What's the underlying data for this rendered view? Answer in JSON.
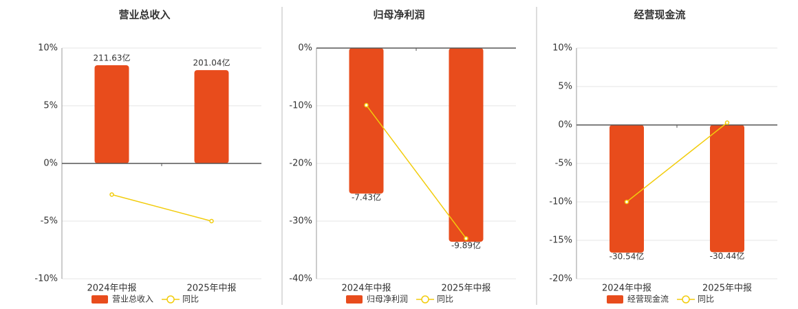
{
  "chart_data": [
    {
      "type": "bar",
      "title": "营业总收入",
      "categories": [
        "2024年中报",
        "2025年中报"
      ],
      "series": [
        {
          "name": "营业总收入",
          "color": "#e84c1c",
          "axis": "y2",
          "values": [
            211.63,
            201.04
          ],
          "value_labels": [
            "211.63亿",
            "201.04亿"
          ]
        },
        {
          "name": "同比",
          "color": "#f2cc0c",
          "type": "line",
          "values": [
            -2.7,
            -5.0
          ]
        }
      ],
      "ylim": [
        -10,
        10
      ],
      "yticks": [
        {
          "value": -10,
          "label": "-10%"
        },
        {
          "value": -5,
          "label": "-5%"
        },
        {
          "value": 0,
          "label": "0%"
        },
        {
          "value": 5,
          "label": "5%"
        },
        {
          "value": 10,
          "label": "10%"
        }
      ],
      "y2lim": [
        -248.6,
        248.6
      ],
      "grid": true
    },
    {
      "type": "bar",
      "title": "归母净利润",
      "categories": [
        "2024年中报",
        "2025年中报"
      ],
      "series": [
        {
          "name": "归母净利润",
          "color": "#e84c1c",
          "axis": "y2",
          "values": [
            -7.43,
            -9.89
          ],
          "value_labels": [
            "-7.43亿",
            "-9.89亿"
          ]
        },
        {
          "name": "同比",
          "color": "#f2cc0c",
          "type": "line",
          "values": [
            -9.9,
            -33.0
          ]
        }
      ],
      "ylim": [
        -40,
        0
      ],
      "yticks": [
        {
          "value": -40,
          "label": "-40%"
        },
        {
          "value": -30,
          "label": "-30%"
        },
        {
          "value": -20,
          "label": "-20%"
        },
        {
          "value": -10,
          "label": "-10%"
        },
        {
          "value": 0,
          "label": "0%"
        }
      ],
      "y2lim": [
        -11.78,
        0
      ],
      "grid": true
    },
    {
      "type": "bar",
      "title": "经营现金流",
      "categories": [
        "2024年中报",
        "2025年中报"
      ],
      "series": [
        {
          "name": "经营现金流",
          "color": "#e84c1c",
          "axis": "y2",
          "values": [
            -30.54,
            -30.44
          ],
          "value_labels": [
            "-30.54亿",
            "-30.44亿"
          ]
        },
        {
          "name": "同比",
          "color": "#f2cc0c",
          "type": "line",
          "values": [
            -10.0,
            0.3
          ]
        }
      ],
      "ylim": [
        -20,
        10
      ],
      "yticks": [
        {
          "value": -20,
          "label": "-20%"
        },
        {
          "value": -15,
          "label": "-15%"
        },
        {
          "value": -10,
          "label": "-10%"
        },
        {
          "value": -5,
          "label": "-5%"
        },
        {
          "value": 0,
          "label": "0%"
        },
        {
          "value": 5,
          "label": "5%"
        },
        {
          "value": 10,
          "label": "10%"
        }
      ],
      "y2lim": [
        -36.8,
        18.4
      ],
      "grid": true
    }
  ]
}
